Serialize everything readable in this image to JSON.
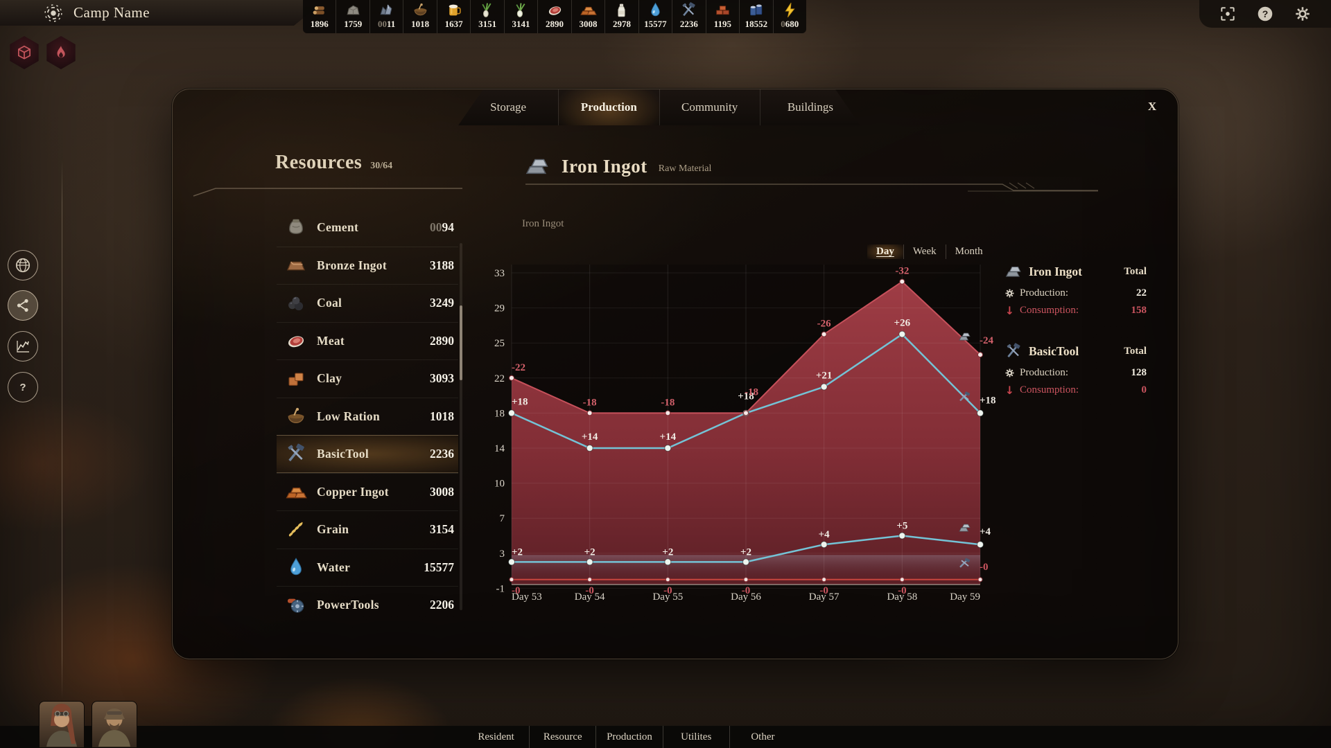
{
  "hud": {
    "camp_name": "Camp Name",
    "resources": [
      {
        "icon": "wood",
        "dim": "",
        "value": "1896"
      },
      {
        "icon": "stone",
        "dim": "",
        "value": "1759"
      },
      {
        "icon": "iron-ore",
        "dim": "00",
        "value": "11"
      },
      {
        "icon": "low-ration",
        "dim": "",
        "value": "1018"
      },
      {
        "icon": "beer",
        "dim": "",
        "value": "1637"
      },
      {
        "icon": "spring-onion",
        "dim": "",
        "value": "3151"
      },
      {
        "icon": "leek",
        "dim": "",
        "value": "3141"
      },
      {
        "icon": "meat",
        "dim": "",
        "value": "2890"
      },
      {
        "icon": "copper-ingot",
        "dim": "",
        "value": "3008"
      },
      {
        "icon": "milk-bottle",
        "dim": "",
        "value": "2978"
      },
      {
        "icon": "water",
        "dim": "",
        "value": "15577"
      },
      {
        "icon": "basic-tool",
        "dim": "",
        "value": "2236"
      },
      {
        "icon": "brick",
        "dim": "",
        "value": "1195"
      },
      {
        "icon": "canned-food",
        "dim": "",
        "value": "18552"
      },
      {
        "icon": "power",
        "dim": "0",
        "value": "680"
      }
    ]
  },
  "panel": {
    "tabs": [
      "Storage",
      "Production",
      "Community",
      "Buildings"
    ],
    "active_tab": "Production",
    "close_label": "X",
    "resources_title": "Resources",
    "resources_count": "30/64",
    "list": [
      {
        "icon": "cement",
        "name": "Cement",
        "dim": "00",
        "value": "94",
        "selected": false
      },
      {
        "icon": "bronze-ingot",
        "name": "Bronze Ingot",
        "dim": "",
        "value": "3188",
        "selected": false
      },
      {
        "icon": "coal",
        "name": "Coal",
        "dim": "",
        "value": "3249",
        "selected": false
      },
      {
        "icon": "meat",
        "name": "Meat",
        "dim": "",
        "value": "2890",
        "selected": false
      },
      {
        "icon": "clay",
        "name": "Clay",
        "dim": "",
        "value": "3093",
        "selected": false
      },
      {
        "icon": "low-ration",
        "name": "Low Ration",
        "dim": "",
        "value": "1018",
        "selected": false
      },
      {
        "icon": "basic-tool",
        "name": "BasicTool",
        "dim": "",
        "value": "2236",
        "selected": true
      },
      {
        "icon": "copper-ingot",
        "name": "Copper Ingot",
        "dim": "",
        "value": "3008",
        "selected": false
      },
      {
        "icon": "grain",
        "name": "Grain",
        "dim": "",
        "value": "3154",
        "selected": false
      },
      {
        "icon": "water",
        "name": "Water",
        "dim": "",
        "value": "15577",
        "selected": false
      },
      {
        "icon": "power-tools",
        "name": "PowerTools",
        "dim": "",
        "value": "2206",
        "selected": false
      }
    ],
    "detail": {
      "title": "Iron Ingot",
      "subtitle": "Raw Material",
      "chart_label": "Iron Ingot",
      "range_tabs": [
        "Day",
        "Week",
        "Month"
      ],
      "active_range": "Day",
      "legend": [
        {
          "icon": "iron-ingot",
          "name": "Iron Ingot",
          "total_label": "Total",
          "production_label": "Production:",
          "production": "22",
          "consumption_label": "Consumption:",
          "consumption": "158"
        },
        {
          "icon": "basic-tool",
          "name": "BasicTool",
          "total_label": "Total",
          "production_label": "Production:",
          "production": "128",
          "consumption_label": "Consumption:",
          "consumption": "0"
        }
      ]
    }
  },
  "chart_data": {
    "type": "area+line",
    "title": "Iron Ingot",
    "x": [
      "Day 53",
      "Day 54",
      "Day 55",
      "Day 56",
      "Day 57",
      "Day 58",
      "Day 59"
    ],
    "y_ticks": [
      33,
      29,
      25,
      22,
      18,
      14,
      10,
      7,
      3,
      -1
    ],
    "legend_position": "right",
    "grid": true,
    "series": [
      {
        "name": "Iron Ingot consumption",
        "type": "area",
        "color": "#9e3a42",
        "icon": "iron-ingot",
        "values": [
          22,
          18,
          18,
          18,
          26,
          32,
          24
        ],
        "labels": [
          "-22",
          "-18",
          "-18",
          "-18",
          "-26",
          "-32",
          "-24"
        ]
      },
      {
        "name": "BasicTool production",
        "type": "line",
        "color": "#74c3d6",
        "icon": "basic-tool",
        "values": [
          18,
          14,
          14,
          18,
          21,
          26,
          18
        ],
        "labels": [
          "+18",
          "+14",
          "+14",
          "+18",
          "+21",
          "+26",
          "+18"
        ]
      },
      {
        "name": "Iron Ingot production",
        "type": "line",
        "color": "#74c3d6",
        "icon": "iron-ingot",
        "values": [
          2,
          2,
          2,
          2,
          4,
          5,
          4
        ],
        "labels": [
          "+2",
          "+2",
          "+2",
          "+2",
          "+4",
          "+5",
          "+4"
        ]
      },
      {
        "name": "BasicTool consumption",
        "type": "line",
        "color": "#c8453e",
        "icon": "basic-tool",
        "values": [
          0,
          0,
          0,
          0,
          0,
          0,
          0
        ],
        "labels": [
          "-0",
          "-0",
          "-0",
          "-0",
          "-0",
          "-0",
          "-0"
        ]
      }
    ]
  },
  "footer": {
    "tabs": [
      "Resident",
      "Resource",
      "Production",
      "Utilites",
      "Other"
    ]
  }
}
